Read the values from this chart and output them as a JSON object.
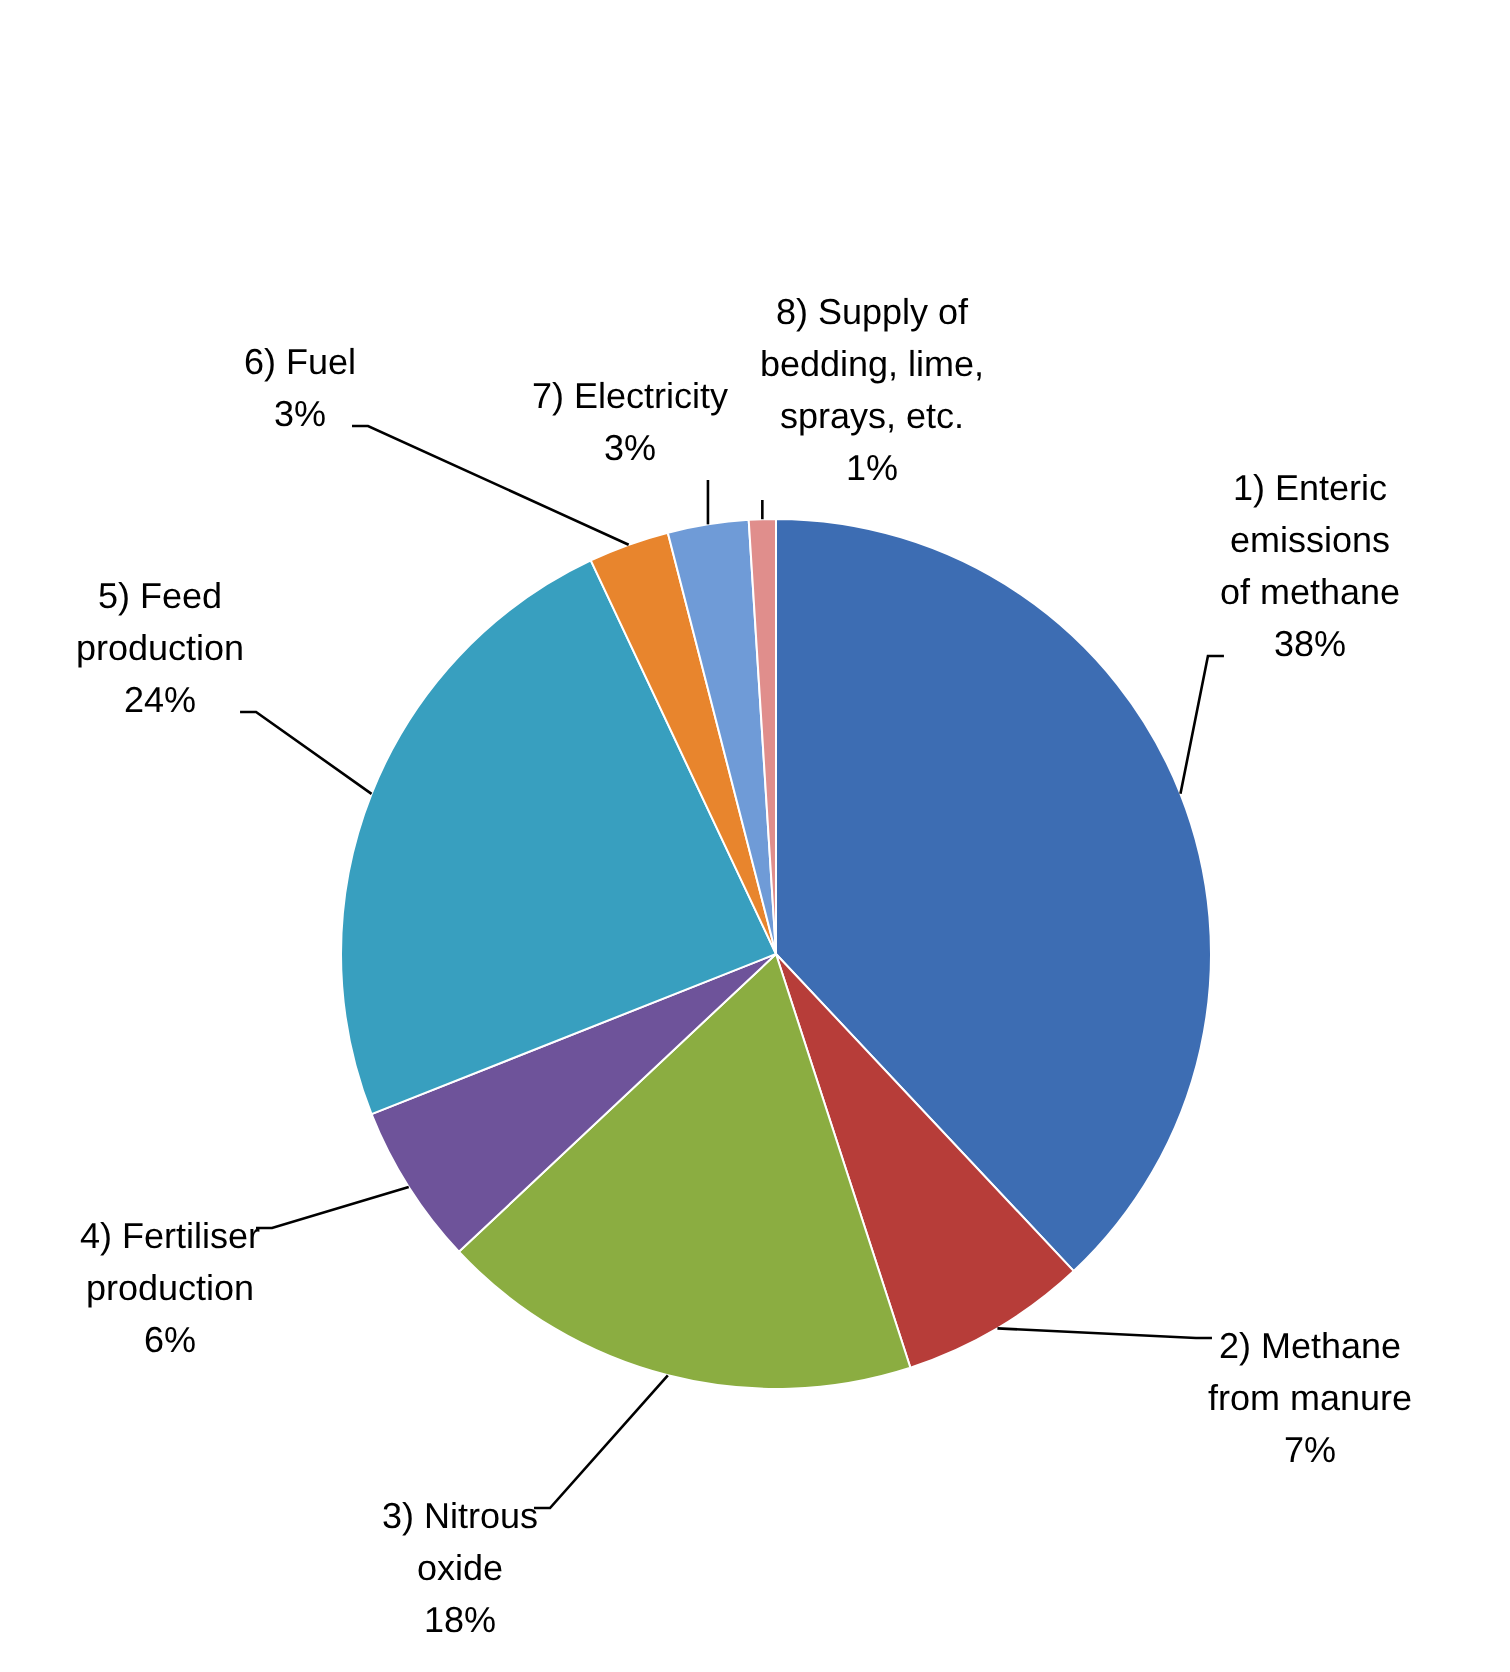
{
  "chart_data": {
    "type": "pie",
    "categories": [
      "1) Enteric emissions of methane",
      "2) Methane from manure",
      "3) Nitrous oxide",
      "4) Fertiliser production",
      "5) Feed production",
      "6) Fuel",
      "7) Electricity",
      "8) Supply of bedding, lime, sprays, etc."
    ],
    "values": [
      38,
      7,
      18,
      6,
      24,
      3,
      3,
      1
    ],
    "value_labels": [
      "38%",
      "7%",
      "18%",
      "6%",
      "24%",
      "3%",
      "3%",
      "1%"
    ],
    "colors": [
      "#3d6db3",
      "#b73d39",
      "#8bad41",
      "#6e539a",
      "#389fbf",
      "#e8852d",
      "#6f9bd7",
      "#e08e8c"
    ]
  }
}
